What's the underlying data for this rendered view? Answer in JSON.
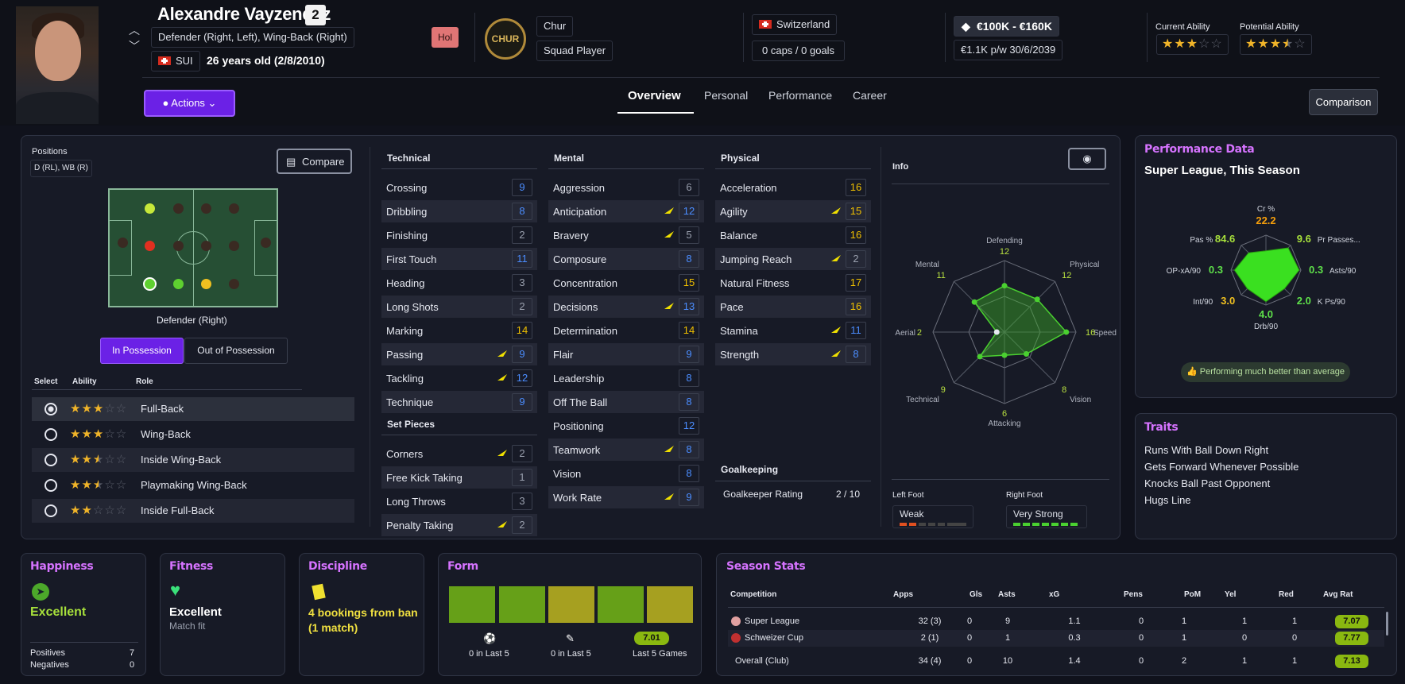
{
  "header": {
    "player_name": "Alexandre Vayzendaz",
    "squad_number": "2",
    "position_text": "Defender (Right, Left), Wing-Back (Right)",
    "nationality_code": "SUI",
    "age_text": "26 years old (2/8/2010)",
    "status_tag": "Hol",
    "club_badge_text": "CHUR",
    "club_name": "Chur",
    "squad_status": "Squad Player",
    "nation": "Switzerland",
    "caps_text": "0 caps / 0 goals",
    "value_text": "€100K - €160K",
    "wage_text": "€1.1K p/w 30/6/2039",
    "current_ability_label": "Current Ability",
    "potential_ability_label": "Potential Ability",
    "current_ability_stars": 3,
    "potential_ability_stars": 3.5
  },
  "nav": {
    "actions_label": "Actions",
    "tabs": [
      "Overview",
      "Personal",
      "Performance",
      "Career"
    ],
    "active_tab": "Overview",
    "comparison_label": "Comparison"
  },
  "positions": {
    "title": "Positions",
    "short": "D (RL), WB (R)",
    "compare_label": "Compare",
    "position_name": "Defender (Right)",
    "in_possession": "In Possession",
    "out_possession": "Out of Possession"
  },
  "roles": {
    "headers": [
      "Select",
      "Ability",
      "Role"
    ],
    "items": [
      {
        "name": "Full-Back",
        "stars": 3,
        "selected": true
      },
      {
        "name": "Wing-Back",
        "stars": 3,
        "selected": false
      },
      {
        "name": "Inside Wing-Back",
        "stars": 2.5,
        "selected": false
      },
      {
        "name": "Playmaking Wing-Back",
        "stars": 2.5,
        "selected": false
      },
      {
        "name": "Inside Full-Back",
        "stars": 2,
        "selected": false
      }
    ]
  },
  "attributes": {
    "technical_title": "Technical",
    "technical": [
      [
        "Crossing",
        "9"
      ],
      [
        "Dribbling",
        "8"
      ],
      [
        "Finishing",
        "2"
      ],
      [
        "First Touch",
        "11"
      ],
      [
        "Heading",
        "3"
      ],
      [
        "Long Shots",
        "2"
      ],
      [
        "Marking",
        "14"
      ],
      [
        "Passing",
        "9"
      ],
      [
        "Tackling",
        "12"
      ],
      [
        "Technique",
        "9"
      ]
    ],
    "setpieces_title": "Set Pieces",
    "setpieces": [
      [
        "Corners",
        "2"
      ],
      [
        "Free Kick Taking",
        "1"
      ],
      [
        "Long Throws",
        "3"
      ],
      [
        "Penalty Taking",
        "2"
      ]
    ],
    "mental_title": "Mental",
    "mental": [
      [
        "Aggression",
        "6"
      ],
      [
        "Anticipation",
        "12"
      ],
      [
        "Bravery",
        "5"
      ],
      [
        "Composure",
        "8"
      ],
      [
        "Concentration",
        "15"
      ],
      [
        "Decisions",
        "13"
      ],
      [
        "Determination",
        "14"
      ],
      [
        "Flair",
        "9"
      ],
      [
        "Leadership",
        "8"
      ],
      [
        "Off The Ball",
        "8"
      ],
      [
        "Positioning",
        "12"
      ],
      [
        "Teamwork",
        "8"
      ],
      [
        "Vision",
        "8"
      ],
      [
        "Work Rate",
        "9"
      ]
    ],
    "physical_title": "Physical",
    "physical": [
      [
        "Acceleration",
        "16"
      ],
      [
        "Agility",
        "15"
      ],
      [
        "Balance",
        "16"
      ],
      [
        "Jumping Reach",
        "2"
      ],
      [
        "Natural Fitness",
        "17"
      ],
      [
        "Pace",
        "16"
      ],
      [
        "Stamina",
        "11"
      ],
      [
        "Strength",
        "8"
      ]
    ],
    "goalkeeping_title": "Goalkeeping",
    "gk_rating_label": "Goalkeeper Rating",
    "gk_rating_value": "2 / 10"
  },
  "info": {
    "title": "Info",
    "radar": [
      [
        "Defending",
        "12"
      ],
      [
        "Physical",
        "12"
      ],
      [
        "Speed",
        "16"
      ],
      [
        "Vision",
        "8"
      ],
      [
        "Attacking",
        "6"
      ],
      [
        "Technical",
        "9"
      ],
      [
        "Aerial",
        "2"
      ],
      [
        "Mental",
        "11"
      ]
    ],
    "left_foot_label": "Left Foot",
    "left_foot": "Weak",
    "right_foot_label": "Right Foot",
    "right_foot": "Very Strong"
  },
  "performance": {
    "title": "Performance Data",
    "subtitle": "Super League, This Season",
    "stats": [
      [
        "Cr %",
        "22.2"
      ],
      [
        "Pr Passes...",
        "9.6"
      ],
      [
        "Asts/90",
        "0.3"
      ],
      [
        "K Ps/90",
        "2.0"
      ],
      [
        "Drb/90",
        "4.0"
      ],
      [
        "Int/90",
        "3.0"
      ],
      [
        "OP-xA/90",
        "0.3"
      ],
      [
        "Pas %",
        "84.6"
      ]
    ],
    "verdict": "Performing much better than average"
  },
  "traits": {
    "title": "Traits",
    "items": [
      "Runs With Ball Down Right",
      "Gets Forward Whenever Possible",
      "Knocks Ball Past Opponent",
      "Hugs Line"
    ]
  },
  "happiness": {
    "title": "Happiness",
    "value": "Excellent",
    "pos_label": "Positives",
    "pos": "7",
    "neg_label": "Negatives",
    "neg": "0"
  },
  "fitness": {
    "title": "Fitness",
    "value": "Excellent",
    "sub": "Match fit"
  },
  "discipline": {
    "title": "Discipline",
    "value": "4 bookings from ban (1 match)"
  },
  "form": {
    "title": "Form",
    "goals_text": "0 in Last 5",
    "assists_text": "0 in Last 5",
    "avg": "7.01",
    "avg_label": "Last 5 Games"
  },
  "season": {
    "title": "Season Stats",
    "headers": [
      "Competition",
      "Apps",
      "Gls",
      "Asts",
      "xG",
      "Pens",
      "PoM",
      "Yel",
      "Red",
      "Avg Rat"
    ],
    "rows": [
      [
        "Super League",
        "32 (3)",
        "0",
        "9",
        "1.1",
        "0",
        "1",
        "1",
        "1",
        "7.07"
      ],
      [
        "Schweizer Cup",
        "2 (1)",
        "0",
        "1",
        "0.3",
        "0",
        "1",
        "0",
        "0",
        "7.77"
      ],
      [
        "Overall (Club)",
        "34 (4)",
        "0",
        "10",
        "1.4",
        "0",
        "2",
        "1",
        "1",
        "7.13"
      ]
    ]
  }
}
